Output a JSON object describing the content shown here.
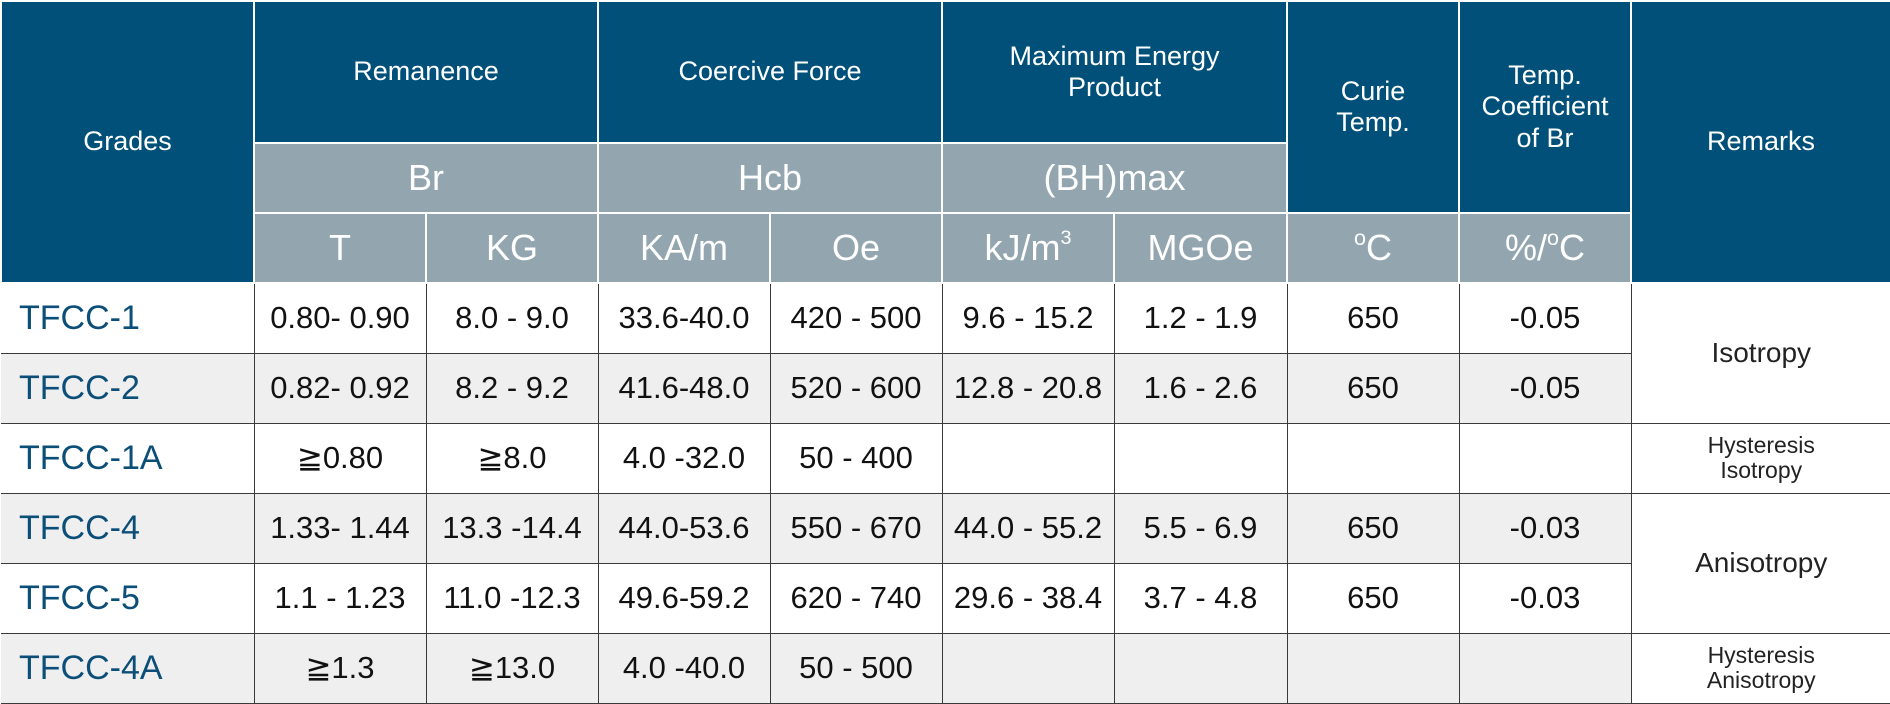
{
  "headers": {
    "grades": "Grades",
    "remanence": "Remanence",
    "coercive_force": "Coercive Force",
    "max_energy_line1": "Maximum Energy",
    "max_energy_line2": "Product",
    "curie_line1": "Curie",
    "curie_line2": "Temp.",
    "temp_coef_line1": "Temp.",
    "temp_coef_line2": "Coefficient",
    "temp_coef_line3": "of Br",
    "remarks": "Remarks",
    "br": "Br",
    "hcb": "Hcb",
    "bhmax": "(BH)max"
  },
  "units": {
    "t": "T",
    "kg": "KG",
    "ka_m": "KA/m",
    "oe": "Oe",
    "kj_m_base": "kJ/m",
    "kj_m_sup": "3",
    "mgoe": "MGOe",
    "degc_sup": "o",
    "degc_base": "C",
    "pct_base": "%/",
    "pct_sup": "o",
    "pct_tail": "C"
  },
  "rows": [
    {
      "grade": "TFCC-1",
      "t": "0.80- 0.90",
      "kg": "8.0  - 9.0",
      "kam": "33.6-40.0",
      "oe": "420 - 500",
      "kjm": "9.6  - 15.2",
      "mgoe": "1.2  - 1.9",
      "curie": "650",
      "coef": "-0.05"
    },
    {
      "grade": "TFCC-2",
      "t": "0.82- 0.92",
      "kg": "8.2  - 9.2",
      "kam": "41.6-48.0",
      "oe": "520 - 600",
      "kjm": "12.8 - 20.8",
      "mgoe": "1.6  - 2.6",
      "curie": "650",
      "coef": "-0.05"
    },
    {
      "grade": "TFCC-1A",
      "t": "≧0.80",
      "kg": "≧8.0",
      "kam": "4.0  -32.0",
      "oe": "50  - 400",
      "kjm": "",
      "mgoe": "",
      "curie": "",
      "coef": ""
    },
    {
      "grade": "TFCC-4",
      "t": "1.33- 1.44",
      "kg": "13.3 -14.4",
      "kam": "44.0-53.6",
      "oe": "550 - 670",
      "kjm": "44.0 - 55.2",
      "mgoe": "5.5  - 6.9",
      "curie": "650",
      "coef": "-0.03"
    },
    {
      "grade": "TFCC-5",
      "t": "1.1  - 1.23",
      "kg": "11.0 -12.3",
      "kam": "49.6-59.2",
      "oe": "620 - 740",
      "kjm": "29.6 - 38.4",
      "mgoe": "3.7  - 4.8",
      "curie": "650",
      "coef": "-0.03"
    },
    {
      "grade": "TFCC-4A",
      "t": "≧1.3",
      "kg": "≧13.0",
      "kam": "4.0  -40.0",
      "oe": "50  - 500",
      "kjm": "",
      "mgoe": "",
      "curie": "",
      "coef": ""
    }
  ],
  "remarks": {
    "isotropy": "Isotropy",
    "hyst_iso_line1": "Hysteresis",
    "hyst_iso_line2": "Isotropy",
    "anisotropy": "Anisotropy",
    "hyst_aniso_line1": "Hysteresis",
    "hyst_aniso_line2": "Anisotropy"
  }
}
